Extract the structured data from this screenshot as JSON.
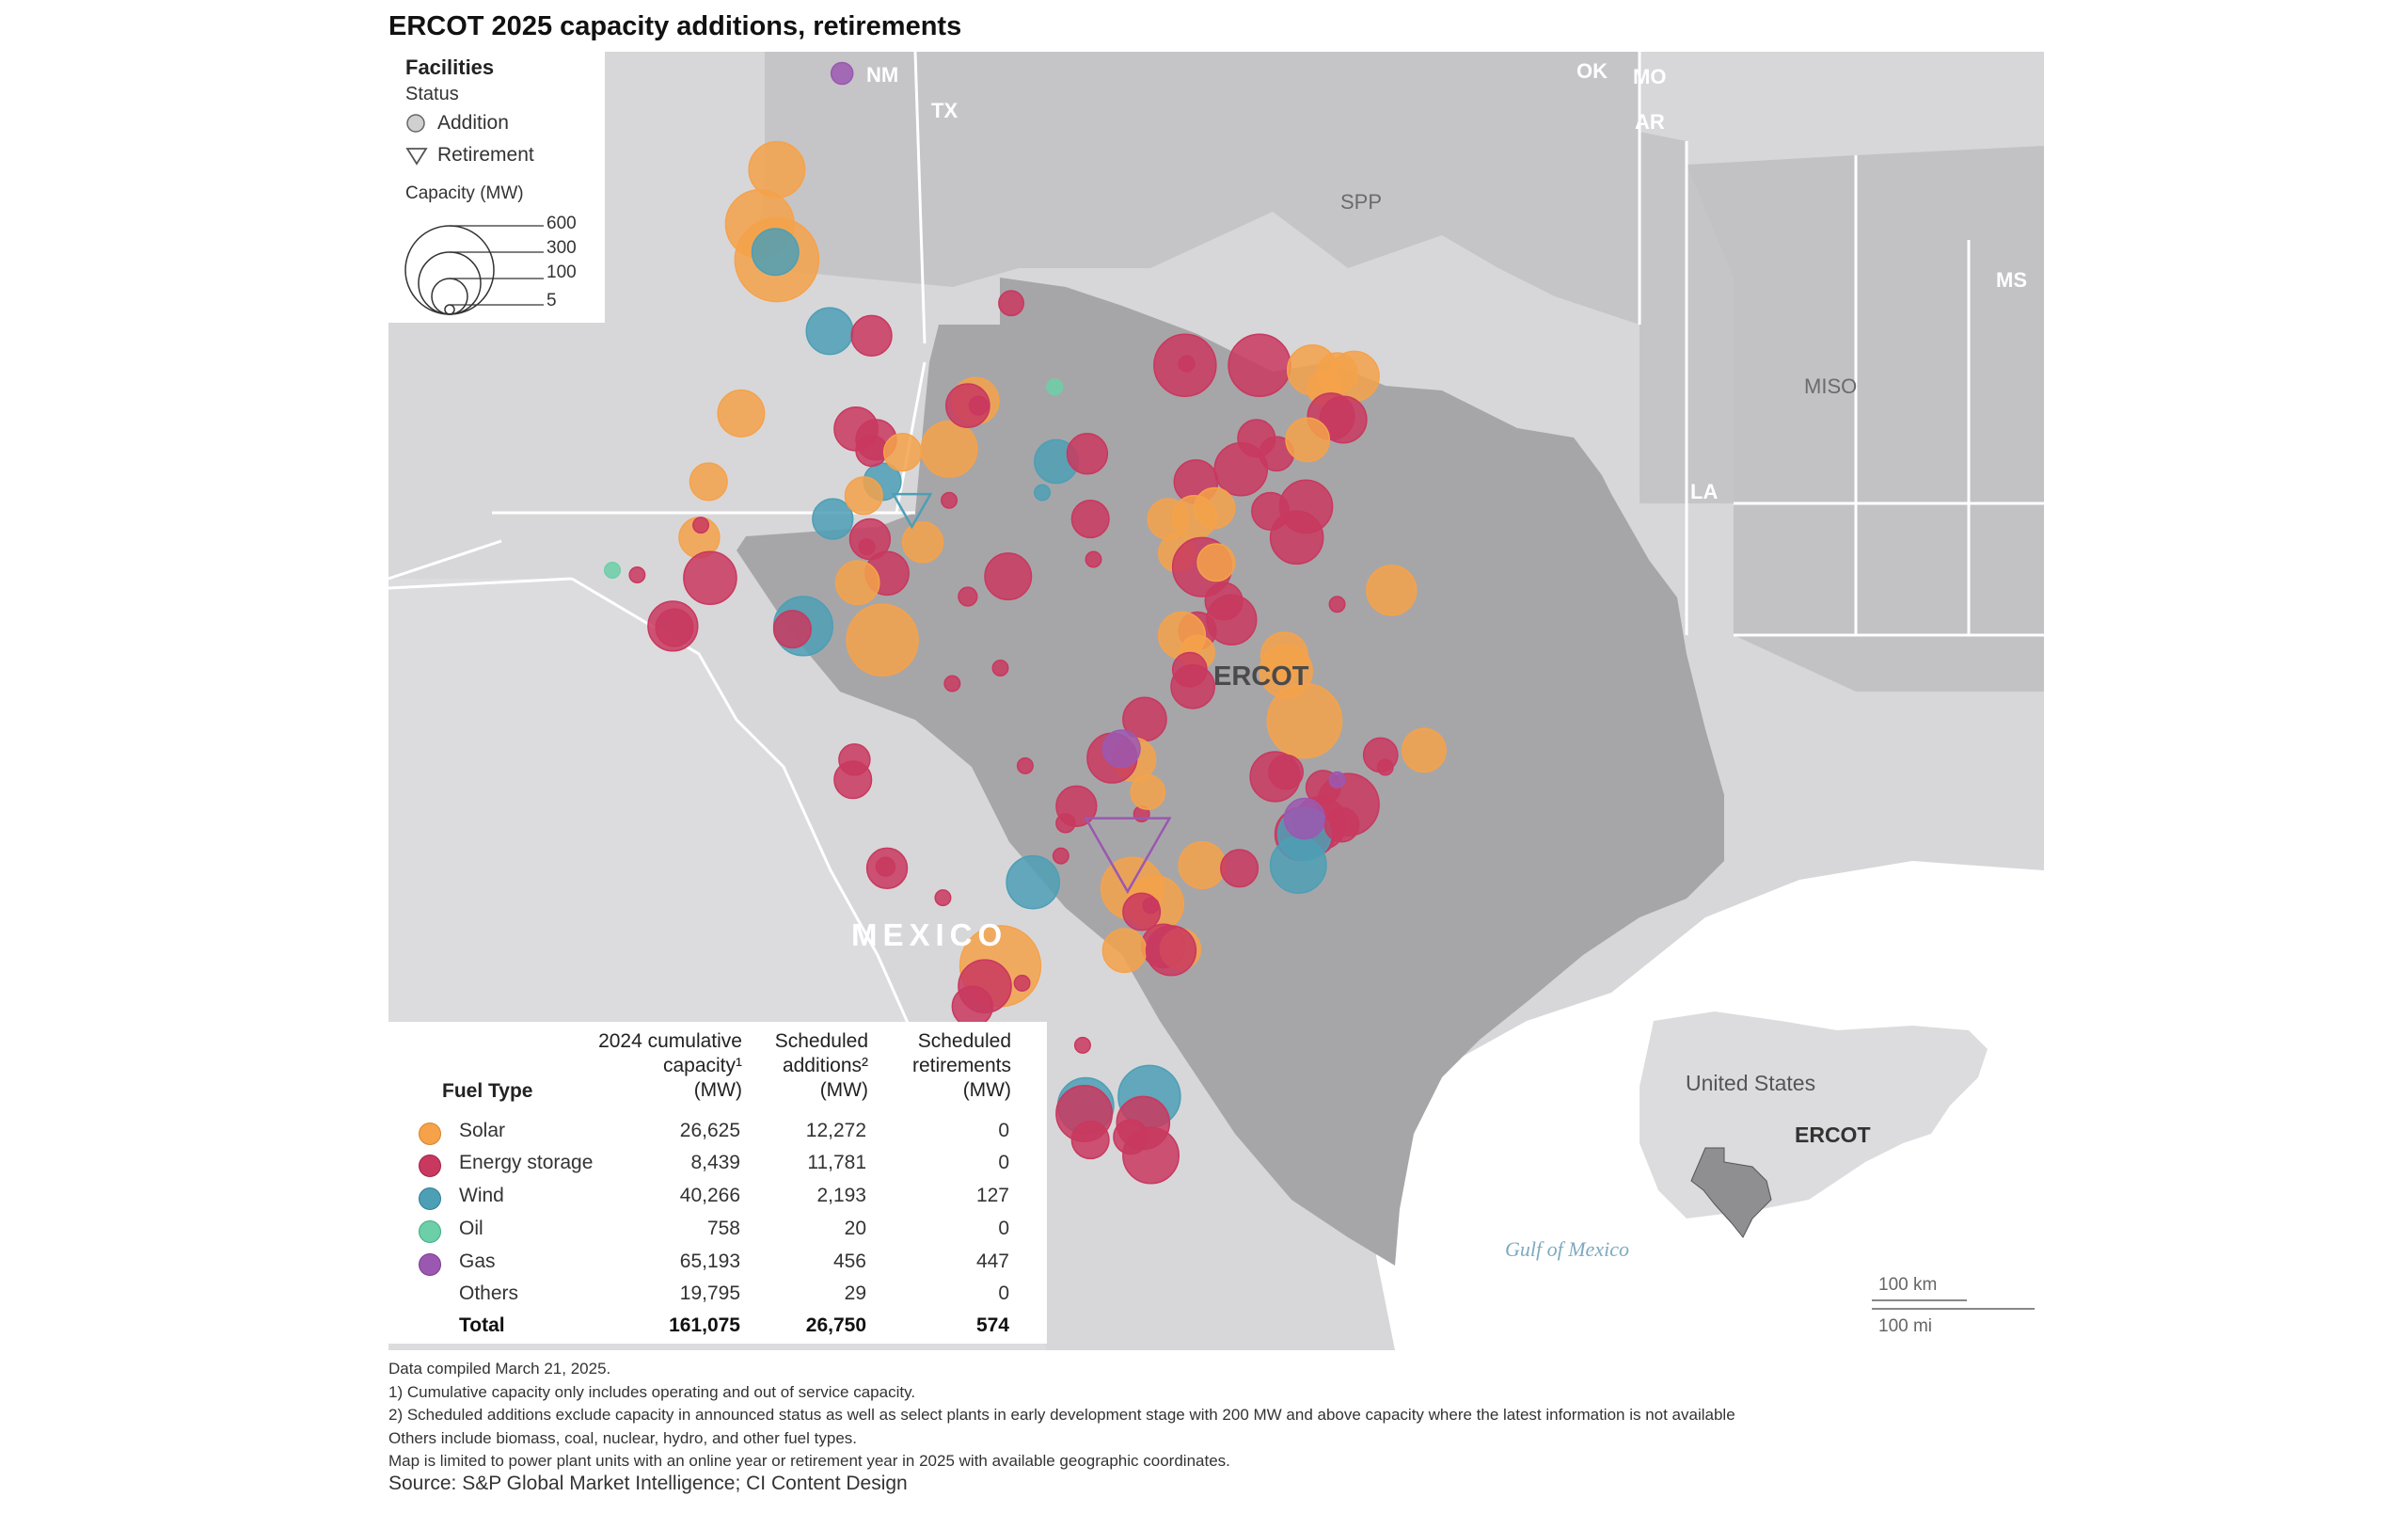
{
  "title": "ERCOT 2025 capacity additions, retirements",
  "legend": {
    "title": "Facilities",
    "status_label": "Status",
    "addition_label": "Addition",
    "retirement_label": "Retirement",
    "capacity_label": "Capacity (MW)",
    "sizes": [
      "600",
      "300",
      "100",
      "5"
    ]
  },
  "map_labels": {
    "nm": "NM",
    "tx": "TX",
    "ok": "OK",
    "mo": "MO",
    "ar": "AR",
    "ms": "MS",
    "la": "LA",
    "spp": "SPP",
    "miso": "MISO",
    "ercot": "ERCOT",
    "mexico": "MEXICO",
    "gulf": "Gulf of Mexico"
  },
  "inset": {
    "country": "United States",
    "region": "ERCOT"
  },
  "scale": {
    "km": "100 km",
    "mi": "100 mi"
  },
  "colors": {
    "solar": "#f5a24a",
    "energy_storage": "#c9385f",
    "wind": "#4d9fb5",
    "oil": "#6ccfa8",
    "gas": "#9b58b0",
    "ercot_fill": "#a6a6a9",
    "other_fill": "#d7d7d9",
    "water": "#ffffff"
  },
  "table": {
    "fuel_type_header": "Fuel Type",
    "col1_header": [
      "2024 cumulative",
      "capacity¹",
      "(MW)"
    ],
    "col2_header": [
      "Scheduled",
      "additions²",
      "(MW)"
    ],
    "col3_header": [
      "Scheduled",
      "retirements",
      "(MW)"
    ],
    "rows": [
      {
        "fuel": "Solar",
        "cumulative": "26,625",
        "additions": "12,272",
        "retirements": "0"
      },
      {
        "fuel": "Energy storage",
        "cumulative": "8,439",
        "additions": "11,781",
        "retirements": "0"
      },
      {
        "fuel": "Wind",
        "cumulative": "40,266",
        "additions": "2,193",
        "retirements": "127"
      },
      {
        "fuel": "Oil",
        "cumulative": "758",
        "additions": "20",
        "retirements": "0"
      },
      {
        "fuel": "Gas",
        "cumulative": "65,193",
        "additions": "456",
        "retirements": "447"
      },
      {
        "fuel": "Others",
        "cumulative": "19,795",
        "additions": "29",
        "retirements": "0"
      }
    ],
    "total": {
      "fuel": "Total",
      "cumulative": "161,075",
      "additions": "26,750",
      "retirements": "574"
    }
  },
  "notes": [
    "Data compiled March 21, 2025.",
    "1) Cumulative capacity only includes operating and out of service capacity.",
    "2) Scheduled additions exclude capacity in announced status as well as select plants in early development stage with 200 MW and above capacity where the latest information is not available",
    "Others include biomass, coal, nuclear,  hydro, and other fuel types.",
    "Map is limited to power plant units with an online year or retirement year in 2025 with  available geographic coordinates."
  ],
  "source": "Source: S&P Global Market Intelligence; CI Content Design"
}
